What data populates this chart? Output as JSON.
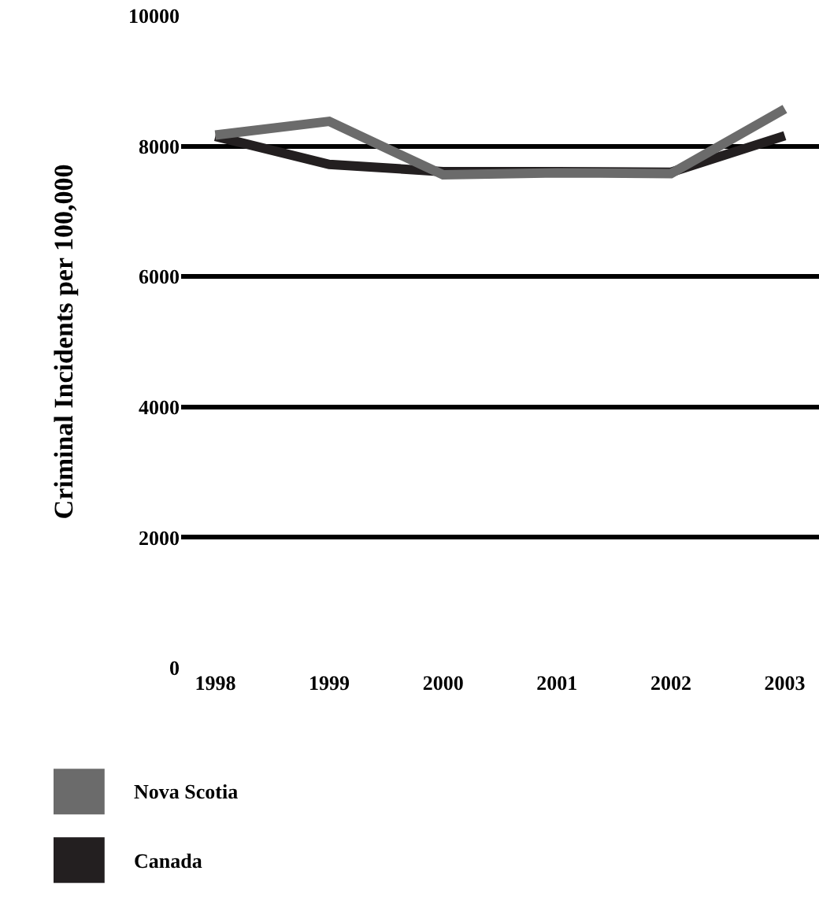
{
  "chart_data": {
    "type": "line",
    "ylabel": "Criminal Incidents per 100,000",
    "categories": [
      "1998",
      "1999",
      "2000",
      "2001",
      "2002",
      "2003"
    ],
    "series": [
      {
        "name": "Nova Scotia",
        "color": "#6b6b6b",
        "values": [
          8170,
          8380,
          7560,
          7590,
          7580,
          8570
        ]
      },
      {
        "name": "Canada",
        "color": "#231f20",
        "values": [
          8150,
          7720,
          7610,
          7610,
          7600,
          8160
        ]
      }
    ],
    "ylim": [
      0,
      10000
    ],
    "yticks": [
      0,
      2000,
      4000,
      6000,
      8000,
      10000
    ],
    "grid": "y",
    "legend": "bottom left",
    "line_style": "solid",
    "marker": "none"
  }
}
